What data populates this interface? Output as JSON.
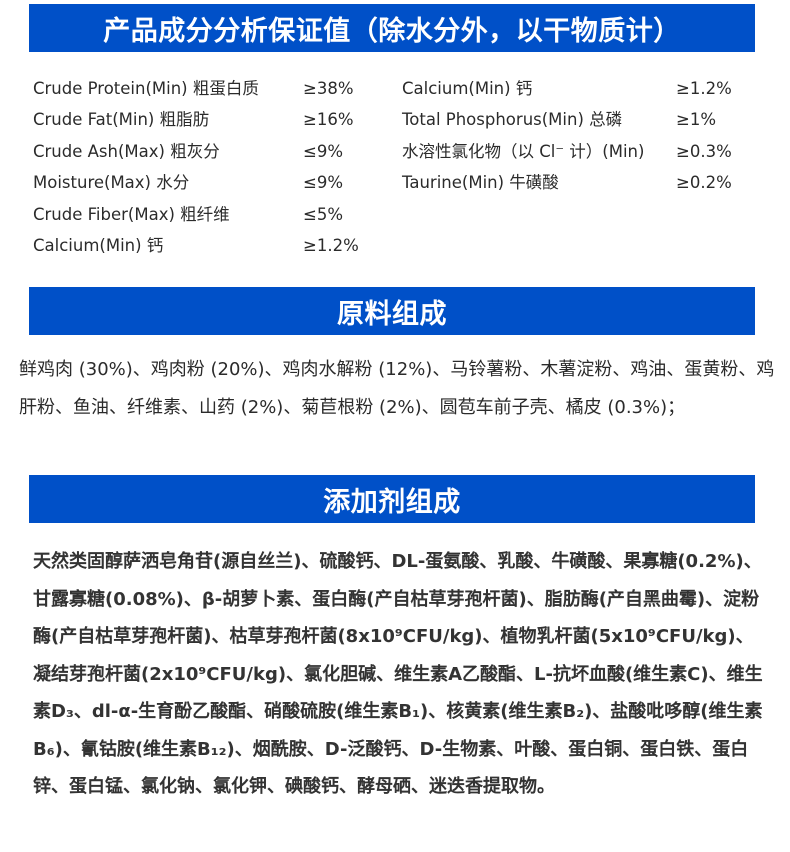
{
  "banners": {
    "analysis": "产品成分分析保证值（除水分外，以干物质计）",
    "ingredients": "原料组成",
    "additives": "添加剂组成"
  },
  "colors": {
    "banner": "#0050c8",
    "text": "#2b2b2b"
  },
  "analysis_left": [
    {
      "label": "Crude Protein(Min) 粗蛋白质",
      "value": "≥38%"
    },
    {
      "label": "Crude Fat(Min) 粗脂肪",
      "value": "≥16%"
    },
    {
      "label": "Crude Ash(Max) 粗灰分",
      "value": "≤9%"
    },
    {
      "label": "Moisture(Max) 水分",
      "value": "≤9%"
    },
    {
      "label": "Crude Fiber(Max) 粗纤维",
      "value": "≤5%"
    },
    {
      "label": "Calcium(Min) 钙",
      "value": "≥1.2%"
    }
  ],
  "analysis_right": [
    {
      "label": "Calcium(Min) 钙",
      "value": "≥1.2%"
    },
    {
      "label": "Total Phosphorus(Min) 总磷",
      "value": "≥1%"
    },
    {
      "label": "水溶性氯化物（以 Cl⁻ 计）(Min)",
      "value": "≥0.3%"
    },
    {
      "label": "Taurine(Min) 牛磺酸",
      "value": "≥0.2%"
    }
  ],
  "ingredients_text": "鲜鸡肉 (30%)、鸡肉粉 (20%)、鸡肉水解粉 (12%)、马铃薯粉、木薯淀粉、鸡油、蛋黄粉、鸡肝粉、鱼油、纤维素、山药 (2%)、菊苣根粉 (2%)、圆苞车前子壳、橘皮 (0.3%)；",
  "additives_text": "天然类固醇萨洒皂角苷(源自丝兰)、硫酸钙、DL-蛋氨酸、乳酸、牛磺酸、果寡糖(0.2%)、甘露寡糖(0.08%)、β-胡萝卜素、蛋白酶(产自枯草芽孢杆菌)、脂肪酶(产自黑曲霉)、淀粉酶(产自枯草芽孢杆菌)、枯草芽孢杆菌(8x10⁹CFU/kg)、植物乳杆菌(5x10⁹CFU/kg)、凝结芽孢杆菌(2x10⁹CFU/kg)、氯化胆碱、维生素A乙酸酯、L-抗坏血酸(维生素C)、维生素D₃、dl-α-生育酚乙酸酯、硝酸硫胺(维生素B₁)、核黄素(维生素B₂)、盐酸吡哆醇(维生素B₆)、氰钴胺(维生素B₁₂)、烟酰胺、D-泛酸钙、D-生物素、叶酸、蛋白铜、蛋白铁、蛋白锌、蛋白锰、氯化钠、氯化钾、碘酸钙、酵母硒、迷迭香提取物。"
}
